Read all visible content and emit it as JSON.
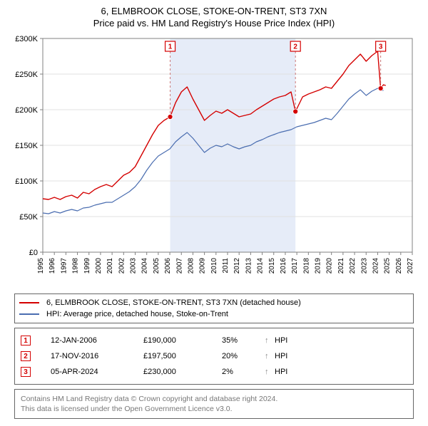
{
  "title_line1": "6, ELMBROOK CLOSE, STOKE-ON-TRENT, ST3 7XN",
  "title_line2": "Price paid vs. HM Land Registry's House Price Index (HPI)",
  "chart": {
    "type": "line",
    "background_color": "#ffffff",
    "shaded_band": {
      "x_from": 2006.03,
      "x_to": 2016.88,
      "fill": "#e6ecf8"
    },
    "axis_color": "#808080",
    "grid_color": "#e0e0e0",
    "xlim": [
      1995,
      2027
    ],
    "x_ticks": [
      1995,
      1996,
      1997,
      1998,
      1999,
      2000,
      2001,
      2002,
      2003,
      2004,
      2005,
      2006,
      2007,
      2008,
      2009,
      2010,
      2011,
      2012,
      2013,
      2014,
      2015,
      2016,
      2017,
      2018,
      2019,
      2020,
      2021,
      2022,
      2023,
      2024,
      2025,
      2026,
      2027
    ],
    "x_tick_fontsize": 10,
    "x_tick_rotation": -90,
    "ylim": [
      0,
      300000
    ],
    "y_ticks": [
      0,
      50000,
      100000,
      150000,
      200000,
      250000,
      300000
    ],
    "y_tick_labels": [
      "£0",
      "£50K",
      "£100K",
      "£150K",
      "£200K",
      "£250K",
      "£300K"
    ],
    "y_tick_fontsize": 11,
    "series": [
      {
        "name": "property",
        "label": "6, ELMBROOK CLOSE, STOKE-ON-TRENT, ST3 7XN (detached house)",
        "color": "#d40000",
        "line_width": 1.4,
        "x": [
          1995,
          1995.5,
          1996,
          1996.5,
          1997,
          1997.5,
          1998,
          1998.5,
          1999,
          1999.5,
          2000,
          2000.5,
          2001,
          2001.5,
          2002,
          2002.5,
          2003,
          2003.5,
          2004,
          2004.5,
          2005,
          2005.5,
          2006.03,
          2006.5,
          2007,
          2007.5,
          2008,
          2008.5,
          2009,
          2009.5,
          2010,
          2010.5,
          2011,
          2011.5,
          2012,
          2012.5,
          2013,
          2013.5,
          2014,
          2014.5,
          2015,
          2015.5,
          2016,
          2016.5,
          2016.88,
          2017.5,
          2018,
          2018.5,
          2019,
          2019.5,
          2020,
          2020.5,
          2021,
          2021.5,
          2022,
          2022.5,
          2023,
          2023.5,
          2024,
          2024.26,
          2024.5,
          2024.7
        ],
        "y": [
          75000,
          74000,
          77000,
          74000,
          78000,
          80000,
          76000,
          84000,
          82000,
          88000,
          92000,
          95000,
          92000,
          100000,
          108000,
          112000,
          120000,
          135000,
          150000,
          165000,
          178000,
          185000,
          190000,
          210000,
          225000,
          232000,
          215000,
          200000,
          185000,
          192000,
          198000,
          195000,
          200000,
          195000,
          190000,
          192000,
          194000,
          200000,
          205000,
          210000,
          215000,
          218000,
          220000,
          225000,
          197500,
          218000,
          222000,
          225000,
          228000,
          232000,
          230000,
          240000,
          250000,
          262000,
          270000,
          278000,
          268000,
          276000,
          282000,
          230000,
          235000,
          234000
        ]
      },
      {
        "name": "hpi",
        "label": "HPI: Average price, detached house, Stoke-on-Trent",
        "color": "#4a6db0",
        "line_width": 1.2,
        "x": [
          1995,
          1995.5,
          1996,
          1996.5,
          1997,
          1997.5,
          1998,
          1998.5,
          1999,
          1999.5,
          2000,
          2000.5,
          2001,
          2001.5,
          2002,
          2002.5,
          2003,
          2003.5,
          2004,
          2004.5,
          2005,
          2005.5,
          2006,
          2006.5,
          2007,
          2007.5,
          2008,
          2008.5,
          2009,
          2009.5,
          2010,
          2010.5,
          2011,
          2011.5,
          2012,
          2012.5,
          2013,
          2013.5,
          2014,
          2014.5,
          2015,
          2015.5,
          2016,
          2016.5,
          2017,
          2017.5,
          2018,
          2018.5,
          2019,
          2019.5,
          2020,
          2020.5,
          2021,
          2021.5,
          2022,
          2022.5,
          2023,
          2023.5,
          2024,
          2024.26,
          2024.5
        ],
        "y": [
          55000,
          54000,
          57000,
          55000,
          58000,
          60000,
          58000,
          62000,
          63000,
          66000,
          68000,
          70000,
          70000,
          75000,
          80000,
          85000,
          92000,
          102000,
          115000,
          126000,
          135000,
          140000,
          145000,
          155000,
          162000,
          168000,
          160000,
          150000,
          140000,
          146000,
          150000,
          148000,
          152000,
          148000,
          145000,
          148000,
          150000,
          155000,
          158000,
          162000,
          165000,
          168000,
          170000,
          172000,
          176000,
          178000,
          180000,
          182000,
          185000,
          188000,
          186000,
          195000,
          205000,
          215000,
          222000,
          228000,
          220000,
          226000,
          230000,
          228000,
          227000
        ]
      }
    ],
    "event_markers": [
      {
        "n": "1",
        "x": 2006.03,
        "y": 190000,
        "border": "#d40000",
        "text": "#d40000"
      },
      {
        "n": "2",
        "x": 2016.88,
        "y": 197500,
        "border": "#d40000",
        "text": "#d40000"
      },
      {
        "n": "3",
        "x": 2024.26,
        "y": 230000,
        "border": "#d40000",
        "text": "#d40000"
      }
    ],
    "marker_box_size": 14,
    "marker_dashed_color": "#cc7777",
    "point_marker_fill": "#d40000",
    "point_marker_radius": 3.5
  },
  "legend": {
    "rows": [
      {
        "color": "#d40000",
        "label": "6, ELMBROOK CLOSE, STOKE-ON-TRENT, ST3 7XN (detached house)"
      },
      {
        "color": "#4a6db0",
        "label": "HPI: Average price, detached house, Stoke-on-Trent"
      }
    ]
  },
  "events_table": {
    "rows": [
      {
        "n": "1",
        "border": "#d40000",
        "text": "#d40000",
        "date": "12-JAN-2006",
        "price": "£190,000",
        "pct": "35%",
        "arrow": "↑",
        "label": "HPI"
      },
      {
        "n": "2",
        "border": "#d40000",
        "text": "#d40000",
        "date": "17-NOV-2016",
        "price": "£197,500",
        "pct": "20%",
        "arrow": "↑",
        "label": "HPI"
      },
      {
        "n": "3",
        "border": "#d40000",
        "text": "#d40000",
        "date": "05-APR-2024",
        "price": "£230,000",
        "pct": "2%",
        "arrow": "↑",
        "label": "HPI"
      }
    ]
  },
  "attribution": {
    "line1": "Contains HM Land Registry data © Crown copyright and database right 2024.",
    "line2": "This data is licensed under the Open Government Licence v3.0."
  }
}
